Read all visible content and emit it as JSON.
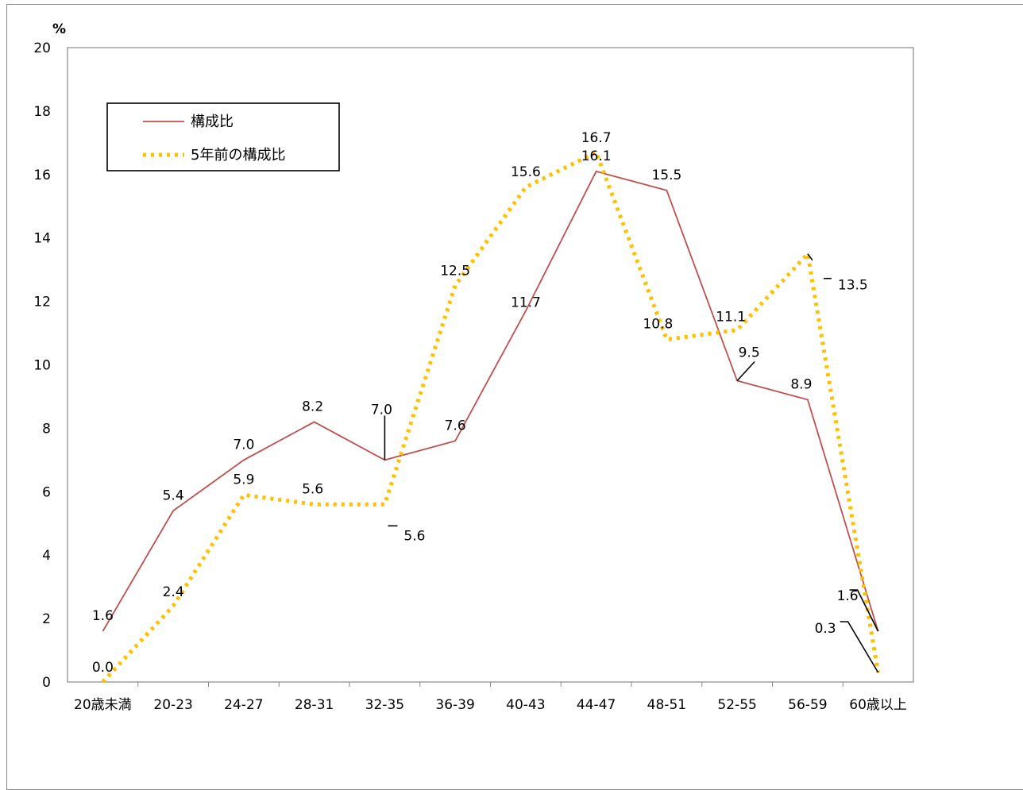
{
  "chart_data": {
    "type": "line",
    "unit_label": "%",
    "categories": [
      "20歳未満",
      "20-23",
      "24-27",
      "28-31",
      "32-35",
      "36-39",
      "40-43",
      "44-47",
      "48-51",
      "52-55",
      "56-59",
      "60歳以上"
    ],
    "yticks": [
      "0",
      "2",
      "4",
      "6",
      "8",
      "10",
      "12",
      "14",
      "16",
      "18",
      "20"
    ],
    "ylim": [
      0,
      20
    ],
    "grid": false,
    "legend_position": "top-left",
    "series": [
      {
        "name": "構成比",
        "color": "#c0504d",
        "style": "solid",
        "values": [
          1.6,
          5.4,
          7.0,
          8.2,
          7.0,
          7.6,
          11.7,
          16.1,
          15.5,
          9.5,
          8.9,
          1.6
        ],
        "labels": [
          "1.6",
          "5.4",
          "7.0",
          "8.2",
          "7.0",
          "7.6",
          "11.7",
          "16.1",
          "15.5",
          "9.5",
          "8.9",
          "1.6"
        ]
      },
      {
        "name": "5年前の構成比",
        "color": "#ffc000",
        "style": "dotted",
        "values": [
          0.0,
          2.4,
          5.9,
          5.6,
          5.6,
          12.5,
          15.6,
          16.7,
          10.8,
          11.1,
          13.5,
          0.3
        ],
        "labels": [
          "0.0",
          "2.4",
          "5.9",
          "5.6",
          "5.6",
          "12.5",
          "15.6",
          "16.7",
          "10.8",
          "11.1",
          "13.5",
          "0.3"
        ]
      }
    ]
  }
}
